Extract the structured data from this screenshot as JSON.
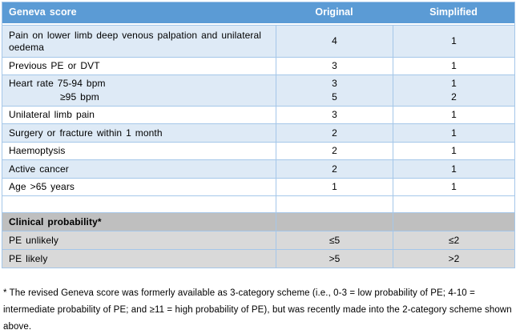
{
  "colors": {
    "header_bg": "#5B9BD5",
    "header_text": "#FFFFFF",
    "band_blue": "#DEEAF6",
    "band_white": "#FFFFFF",
    "grid_border": "#A5C7E9",
    "section_header_bg": "#BFBFBF",
    "section_row_bg": "#D9D9D9",
    "body_text": "#000000"
  },
  "header": {
    "score_label": "Geneva score",
    "original_label": "Original",
    "simplified_label": "Simplified"
  },
  "rows": [
    {
      "label": "Pain on lower limb deep venous palpation and unilateral oedema",
      "original": "4",
      "simplified": "1"
    },
    {
      "label": "Previous PE or DVT",
      "original": "3",
      "simplified": "1"
    },
    {
      "label": "Heart rate 75-94 bpm",
      "label2": "≥95 bpm",
      "original": "3",
      "original2": "5",
      "simplified": "1",
      "simplified2": "2"
    },
    {
      "label": "Unilateral limb pain",
      "original": "3",
      "simplified": "1"
    },
    {
      "label": "Surgery or fracture within 1 month",
      "original": "2",
      "simplified": "1"
    },
    {
      "label": "Haemoptysis",
      "original": "2",
      "simplified": "1"
    },
    {
      "label": "Active cancer",
      "original": "2",
      "simplified": "1"
    },
    {
      "label": "Age >65 years",
      "original": "1",
      "simplified": "1"
    }
  ],
  "section": {
    "title": "Clinical probability*",
    "rows": [
      {
        "label": "PE unlikely",
        "original": "≤5",
        "simplified": "≤2"
      },
      {
        "label": "PE likely",
        "original": ">5",
        "simplified": ">2"
      }
    ]
  },
  "footnote": "* The revised Geneva score was formerly available as 3-category scheme (i.e., 0-3 = low probability of PE; 4-10 = intermediate probability of PE; and ≥11 = high probability of PE), but was recently made into the 2-category scheme shown above."
}
